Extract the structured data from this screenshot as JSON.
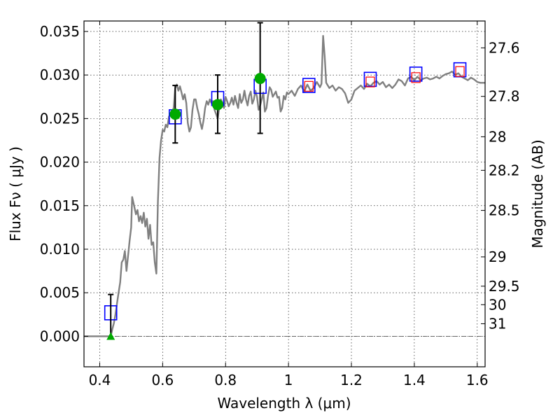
{
  "chart_data": {
    "type": "line",
    "xlabel": "Wavelength  λ (μm)",
    "ylabel": "Flux  Fν  ( μJy )",
    "ylabel_right": "Magnitude (AB)",
    "xlim": [
      0.35,
      1.625
    ],
    "ylim": [
      -0.0035,
      0.0362
    ],
    "grid": true,
    "x_ticks": [
      0.4,
      0.6,
      0.8,
      1.0,
      1.2,
      1.4,
      1.6
    ],
    "x_tick_labels": [
      "0.4",
      "0.6",
      "0.8",
      "1",
      "1.2",
      "1.4",
      "1.6"
    ],
    "y_ticks": [
      0.0,
      0.005,
      0.01,
      0.015,
      0.02,
      0.025,
      0.03,
      0.035
    ],
    "y_tick_labels": [
      "0.000",
      "0.005",
      "0.010",
      "0.015",
      "0.020",
      "0.025",
      "0.030",
      "0.035"
    ],
    "mag_ticks": [
      27.6,
      27.8,
      28,
      28.2,
      28.5,
      29,
      29.5,
      30,
      31
    ],
    "mag_tick_labels": [
      "27.6",
      "27.8",
      "28",
      "28.2",
      "28.5",
      "29",
      "29.5",
      "30",
      "31"
    ],
    "series": [
      {
        "kind": "line",
        "color": "#808080",
        "points": [
          [
            0.35,
            0.0
          ],
          [
            0.42,
            0.0
          ],
          [
            0.435,
            0.0
          ],
          [
            0.44,
            0.0008
          ],
          [
            0.445,
            0.0015
          ],
          [
            0.45,
            0.0025
          ],
          [
            0.455,
            0.0038
          ],
          [
            0.46,
            0.005
          ],
          [
            0.465,
            0.0062
          ],
          [
            0.47,
            0.0085
          ],
          [
            0.475,
            0.0088
          ],
          [
            0.48,
            0.0098
          ],
          [
            0.485,
            0.0075
          ],
          [
            0.49,
            0.0092
          ],
          [
            0.495,
            0.011
          ],
          [
            0.5,
            0.0125
          ],
          [
            0.503,
            0.016
          ],
          [
            0.508,
            0.0152
          ],
          [
            0.515,
            0.014
          ],
          [
            0.52,
            0.0145
          ],
          [
            0.525,
            0.0132
          ],
          [
            0.53,
            0.0138
          ],
          [
            0.535,
            0.013
          ],
          [
            0.54,
            0.0142
          ],
          [
            0.545,
            0.0126
          ],
          [
            0.55,
            0.0135
          ],
          [
            0.555,
            0.0112
          ],
          [
            0.56,
            0.0128
          ],
          [
            0.565,
            0.0105
          ],
          [
            0.57,
            0.0108
          ],
          [
            0.575,
            0.0085
          ],
          [
            0.58,
            0.0072
          ],
          [
            0.585,
            0.0155
          ],
          [
            0.59,
            0.0205
          ],
          [
            0.595,
            0.0225
          ],
          [
            0.6,
            0.0237
          ],
          [
            0.605,
            0.0235
          ],
          [
            0.61,
            0.0243
          ],
          [
            0.615,
            0.024
          ],
          [
            0.62,
            0.0252
          ],
          [
            0.625,
            0.0256
          ],
          [
            0.63,
            0.0258
          ],
          [
            0.635,
            0.0262
          ],
          [
            0.64,
            0.0285
          ],
          [
            0.645,
            0.0289
          ],
          [
            0.65,
            0.0282
          ],
          [
            0.655,
            0.0287
          ],
          [
            0.66,
            0.028
          ],
          [
            0.665,
            0.0272
          ],
          [
            0.67,
            0.0278
          ],
          [
            0.675,
            0.0268
          ],
          [
            0.68,
            0.0245
          ],
          [
            0.685,
            0.0235
          ],
          [
            0.69,
            0.024
          ],
          [
            0.695,
            0.026
          ],
          [
            0.7,
            0.0272
          ],
          [
            0.705,
            0.0272
          ],
          [
            0.71,
            0.0262
          ],
          [
            0.715,
            0.0255
          ],
          [
            0.72,
            0.0245
          ],
          [
            0.725,
            0.0238
          ],
          [
            0.73,
            0.0248
          ],
          [
            0.735,
            0.0262
          ],
          [
            0.74,
            0.027
          ],
          [
            0.745,
            0.0266
          ],
          [
            0.75,
            0.0272
          ],
          [
            0.755,
            0.0268
          ],
          [
            0.76,
            0.027
          ],
          [
            0.765,
            0.026
          ],
          [
            0.77,
            0.0255
          ],
          [
            0.775,
            0.025
          ],
          [
            0.78,
            0.0262
          ],
          [
            0.785,
            0.0272
          ],
          [
            0.79,
            0.0268
          ],
          [
            0.795,
            0.0262
          ],
          [
            0.8,
            0.0275
          ],
          [
            0.805,
            0.027
          ],
          [
            0.81,
            0.0264
          ],
          [
            0.815,
            0.0268
          ],
          [
            0.82,
            0.0274
          ],
          [
            0.825,
            0.0266
          ],
          [
            0.83,
            0.0276
          ],
          [
            0.835,
            0.0268
          ],
          [
            0.84,
            0.0262
          ],
          [
            0.845,
            0.0278
          ],
          [
            0.85,
            0.0268
          ],
          [
            0.855,
            0.0272
          ],
          [
            0.86,
            0.0282
          ],
          [
            0.865,
            0.0272
          ],
          [
            0.87,
            0.0265
          ],
          [
            0.875,
            0.0276
          ],
          [
            0.88,
            0.0281
          ],
          [
            0.885,
            0.0267
          ],
          [
            0.89,
            0.0272
          ],
          [
            0.895,
            0.0282
          ],
          [
            0.9,
            0.0275
          ],
          [
            0.905,
            0.026
          ],
          [
            0.91,
            0.0265
          ],
          [
            0.915,
            0.0272
          ],
          [
            0.92,
            0.028
          ],
          [
            0.925,
            0.0258
          ],
          [
            0.93,
            0.0262
          ],
          [
            0.935,
            0.0276
          ],
          [
            0.94,
            0.0286
          ],
          [
            0.945,
            0.0283
          ],
          [
            0.95,
            0.0275
          ],
          [
            0.955,
            0.0278
          ],
          [
            0.96,
            0.0281
          ],
          [
            0.965,
            0.0274
          ],
          [
            0.97,
            0.0275
          ],
          [
            0.975,
            0.0258
          ],
          [
            0.98,
            0.0262
          ],
          [
            0.985,
            0.0276
          ],
          [
            0.99,
            0.0272
          ],
          [
            0.995,
            0.028
          ],
          [
            1.0,
            0.0278
          ],
          [
            1.01,
            0.0282
          ],
          [
            1.02,
            0.0276
          ],
          [
            1.03,
            0.0284
          ],
          [
            1.04,
            0.0288
          ],
          [
            1.05,
            0.0281
          ],
          [
            1.06,
            0.0289
          ],
          [
            1.07,
            0.0282
          ],
          [
            1.08,
            0.0285
          ],
          [
            1.09,
            0.0292
          ],
          [
            1.1,
            0.0286
          ],
          [
            1.105,
            0.029
          ],
          [
            1.11,
            0.0345
          ],
          [
            1.115,
            0.0322
          ],
          [
            1.12,
            0.0291
          ],
          [
            1.13,
            0.0285
          ],
          [
            1.14,
            0.0288
          ],
          [
            1.15,
            0.0282
          ],
          [
            1.16,
            0.0286
          ],
          [
            1.17,
            0.0284
          ],
          [
            1.18,
            0.0279
          ],
          [
            1.19,
            0.0268
          ],
          [
            1.2,
            0.0272
          ],
          [
            1.21,
            0.0282
          ],
          [
            1.22,
            0.0285
          ],
          [
            1.23,
            0.0288
          ],
          [
            1.24,
            0.0284
          ],
          [
            1.25,
            0.029
          ],
          [
            1.26,
            0.0287
          ],
          [
            1.27,
            0.0291
          ],
          [
            1.28,
            0.0293
          ],
          [
            1.29,
            0.0289
          ],
          [
            1.3,
            0.0292
          ],
          [
            1.31,
            0.0286
          ],
          [
            1.32,
            0.0289
          ],
          [
            1.33,
            0.0285
          ],
          [
            1.34,
            0.0289
          ],
          [
            1.35,
            0.0295
          ],
          [
            1.36,
            0.0293
          ],
          [
            1.37,
            0.0288
          ],
          [
            1.38,
            0.0296
          ],
          [
            1.39,
            0.0298
          ],
          [
            1.4,
            0.0294
          ],
          [
            1.41,
            0.0298
          ],
          [
            1.42,
            0.0294
          ],
          [
            1.43,
            0.0296
          ],
          [
            1.44,
            0.0297
          ],
          [
            1.45,
            0.0295
          ],
          [
            1.46,
            0.0296
          ],
          [
            1.47,
            0.0298
          ],
          [
            1.48,
            0.0296
          ],
          [
            1.49,
            0.0299
          ],
          [
            1.5,
            0.0301
          ],
          [
            1.51,
            0.0302
          ],
          [
            1.52,
            0.0304
          ],
          [
            1.53,
            0.03
          ],
          [
            1.54,
            0.0302
          ],
          [
            1.55,
            0.0298
          ],
          [
            1.56,
            0.0296
          ],
          [
            1.57,
            0.0294
          ],
          [
            1.58,
            0.0297
          ],
          [
            1.59,
            0.0295
          ],
          [
            1.6,
            0.0292
          ],
          [
            1.61,
            0.0291
          ],
          [
            1.625,
            0.0291
          ]
        ]
      },
      {
        "kind": "markers",
        "marker": "square-large",
        "color": "#0000ff",
        "x": [
          0.435,
          0.64,
          0.775,
          0.91,
          1.065,
          1.26,
          1.405,
          1.545
        ],
        "y": [
          0.0027,
          0.0252,
          0.0273,
          0.0287,
          0.0288,
          0.0295,
          0.0301,
          0.0306
        ]
      },
      {
        "kind": "markers",
        "marker": "square-small",
        "color": "#ff0000",
        "x": [
          1.065,
          1.26,
          1.405,
          1.545
        ],
        "y": [
          0.0287,
          0.0292,
          0.0297,
          0.0304
        ]
      },
      {
        "kind": "markers",
        "marker": "circle",
        "color": "#00aa00",
        "x": [
          0.64,
          0.775,
          0.91
        ],
        "y": [
          0.0255,
          0.0266,
          0.0296
        ],
        "err_low": [
          0.0222,
          0.0233,
          0.0233
        ],
        "err_high": [
          0.0288,
          0.03,
          0.036
        ]
      },
      {
        "kind": "markers",
        "marker": "triangle",
        "color": "#00aa00",
        "x": [
          0.435
        ],
        "y": [
          0.0
        ],
        "err_low": [
          -0.0003
        ],
        "err_high": [
          0.0048
        ]
      }
    ]
  }
}
